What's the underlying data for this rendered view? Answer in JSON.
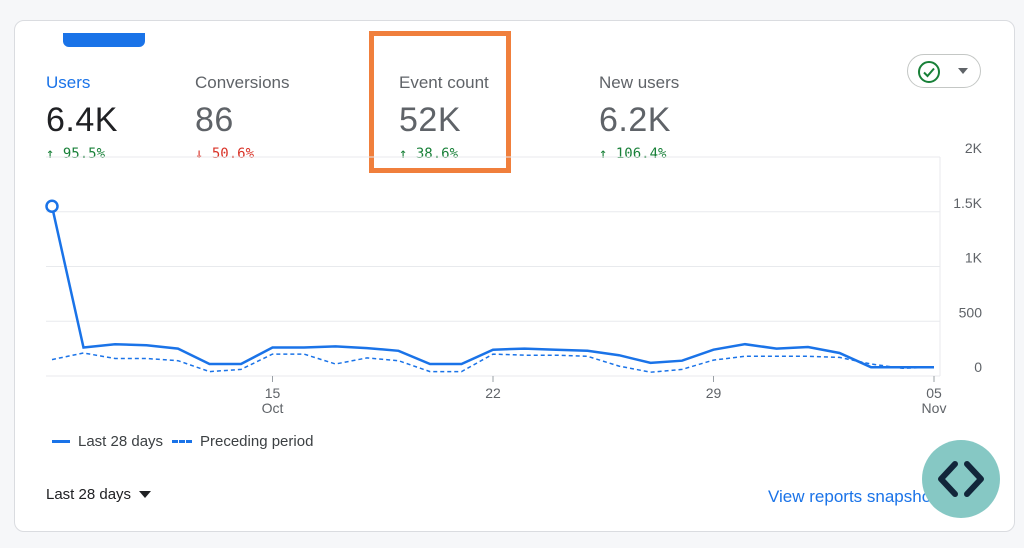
{
  "metrics": [
    {
      "label": "Users",
      "value": "6.4K",
      "arrow": "↑",
      "delta": "95.5%",
      "direction": "up",
      "active": true
    },
    {
      "label": "Conversions",
      "value": "86",
      "arrow": "↓",
      "delta": "50.6%",
      "direction": "down",
      "active": false
    },
    {
      "label": "Event count",
      "value": "52K",
      "arrow": "↑",
      "delta": "38.6%",
      "direction": "up",
      "active": false
    },
    {
      "label": "New users",
      "value": "6.2K",
      "arrow": "↑",
      "delta": "106.4%",
      "direction": "up",
      "active": false
    }
  ],
  "status_dropdown": {
    "icon": "check-circle-icon"
  },
  "legend": {
    "current": "Last 28 days",
    "previous": "Preceding period"
  },
  "period_selector": {
    "label": "Last 28 days"
  },
  "view_reports_link": "View reports snapshot",
  "floating_button": {
    "icon": "code-brackets-icon"
  },
  "colors": {
    "accent": "#1a73e8",
    "up": "#188038",
    "down": "#d93025",
    "highlight": "#f07f3c"
  },
  "chart_data": {
    "type": "line",
    "x": [
      "Oct 8",
      "Oct 9",
      "Oct 10",
      "Oct 11",
      "Oct 12",
      "Oct 13",
      "Oct 14",
      "Oct 15",
      "Oct 16",
      "Oct 17",
      "Oct 18",
      "Oct 19",
      "Oct 20",
      "Oct 21",
      "Oct 22",
      "Oct 23",
      "Oct 24",
      "Oct 25",
      "Oct 26",
      "Oct 27",
      "Oct 28",
      "Oct 29",
      "Oct 30",
      "Oct 31",
      "Nov 1",
      "Nov 2",
      "Nov 3",
      "Nov 4",
      "Nov 5"
    ],
    "series": [
      {
        "name": "Last 28 days",
        "style": "solid",
        "values": [
          1550,
          260,
          290,
          280,
          250,
          110,
          110,
          260,
          260,
          270,
          255,
          230,
          110,
          110,
          240,
          250,
          240,
          230,
          190,
          120,
          140,
          240,
          290,
          250,
          265,
          210,
          80,
          80,
          80
        ]
      },
      {
        "name": "Preceding period",
        "style": "dashed",
        "values": [
          150,
          210,
          160,
          160,
          140,
          40,
          60,
          200,
          200,
          110,
          165,
          140,
          40,
          40,
          200,
          190,
          190,
          180,
          90,
          35,
          60,
          145,
          180,
          180,
          180,
          170,
          110,
          70,
          80
        ]
      }
    ],
    "yticks": [
      "0",
      "500",
      "1K",
      "1.5K",
      "2K"
    ],
    "ytick_values": [
      0,
      500,
      1000,
      1500,
      2000
    ],
    "xticks": [
      {
        "day": "15",
        "month": "Oct",
        "index": 7
      },
      {
        "day": "22",
        "month": "",
        "index": 14
      },
      {
        "day": "29",
        "month": "",
        "index": 21
      },
      {
        "day": "05",
        "month": "Nov",
        "index": 28
      }
    ],
    "ylim": [
      0,
      2000
    ],
    "grid": true,
    "legend_position": "bottom-left"
  }
}
